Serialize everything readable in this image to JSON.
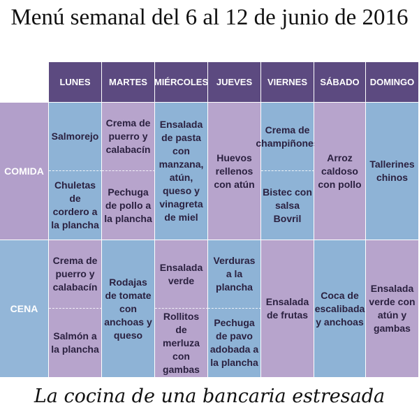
{
  "title": "Menú semanal del 6 al 12 de junio de 2016",
  "days": [
    "LUNES",
    "MARTES",
    "MIÉRCOLES",
    "JUEVES",
    "VIERNES",
    "SÁBADO",
    "DOMINGO"
  ],
  "rows": {
    "comida": "COMIDA",
    "cena": "CENA"
  },
  "comida": {
    "lunes": [
      "Salmorejo",
      "Chuletas de cordero a la plancha"
    ],
    "martes": [
      "Crema de puerro y calabacín",
      "Pechuga de pollo a la plancha"
    ],
    "miercoles": "Ensalada de pasta con manzana, atún, queso y vinagreta de miel",
    "jueves": "Huevos rellenos con atún",
    "viernes": [
      "Crema de champiñones",
      "Bistec con salsa Bovril"
    ],
    "sabado": "Arroz caldoso con pollo",
    "domingo": "Tallerines chinos"
  },
  "cena": {
    "lunes": [
      "Crema de puerro y calabacín",
      "Salmón a la plancha"
    ],
    "martes": "Rodajas de tomate con anchoas y queso",
    "miercoles": [
      "Ensalada verde",
      "Rollitos de merluza con gambas"
    ],
    "jueves": [
      "Verduras a la plancha",
      "Pechuga de pavo adobada a la plancha"
    ],
    "viernes": "Ensalada de frutas",
    "sabado": "Coca de escalibada y anchoas",
    "domingo": "Ensalada verde con atún y gambas"
  },
  "signature": "La cocina de una bancaria estresada",
  "colors": {
    "header": "#5c4a80",
    "lavender": "#b7a4cc",
    "blue": "#8eb3d6"
  }
}
